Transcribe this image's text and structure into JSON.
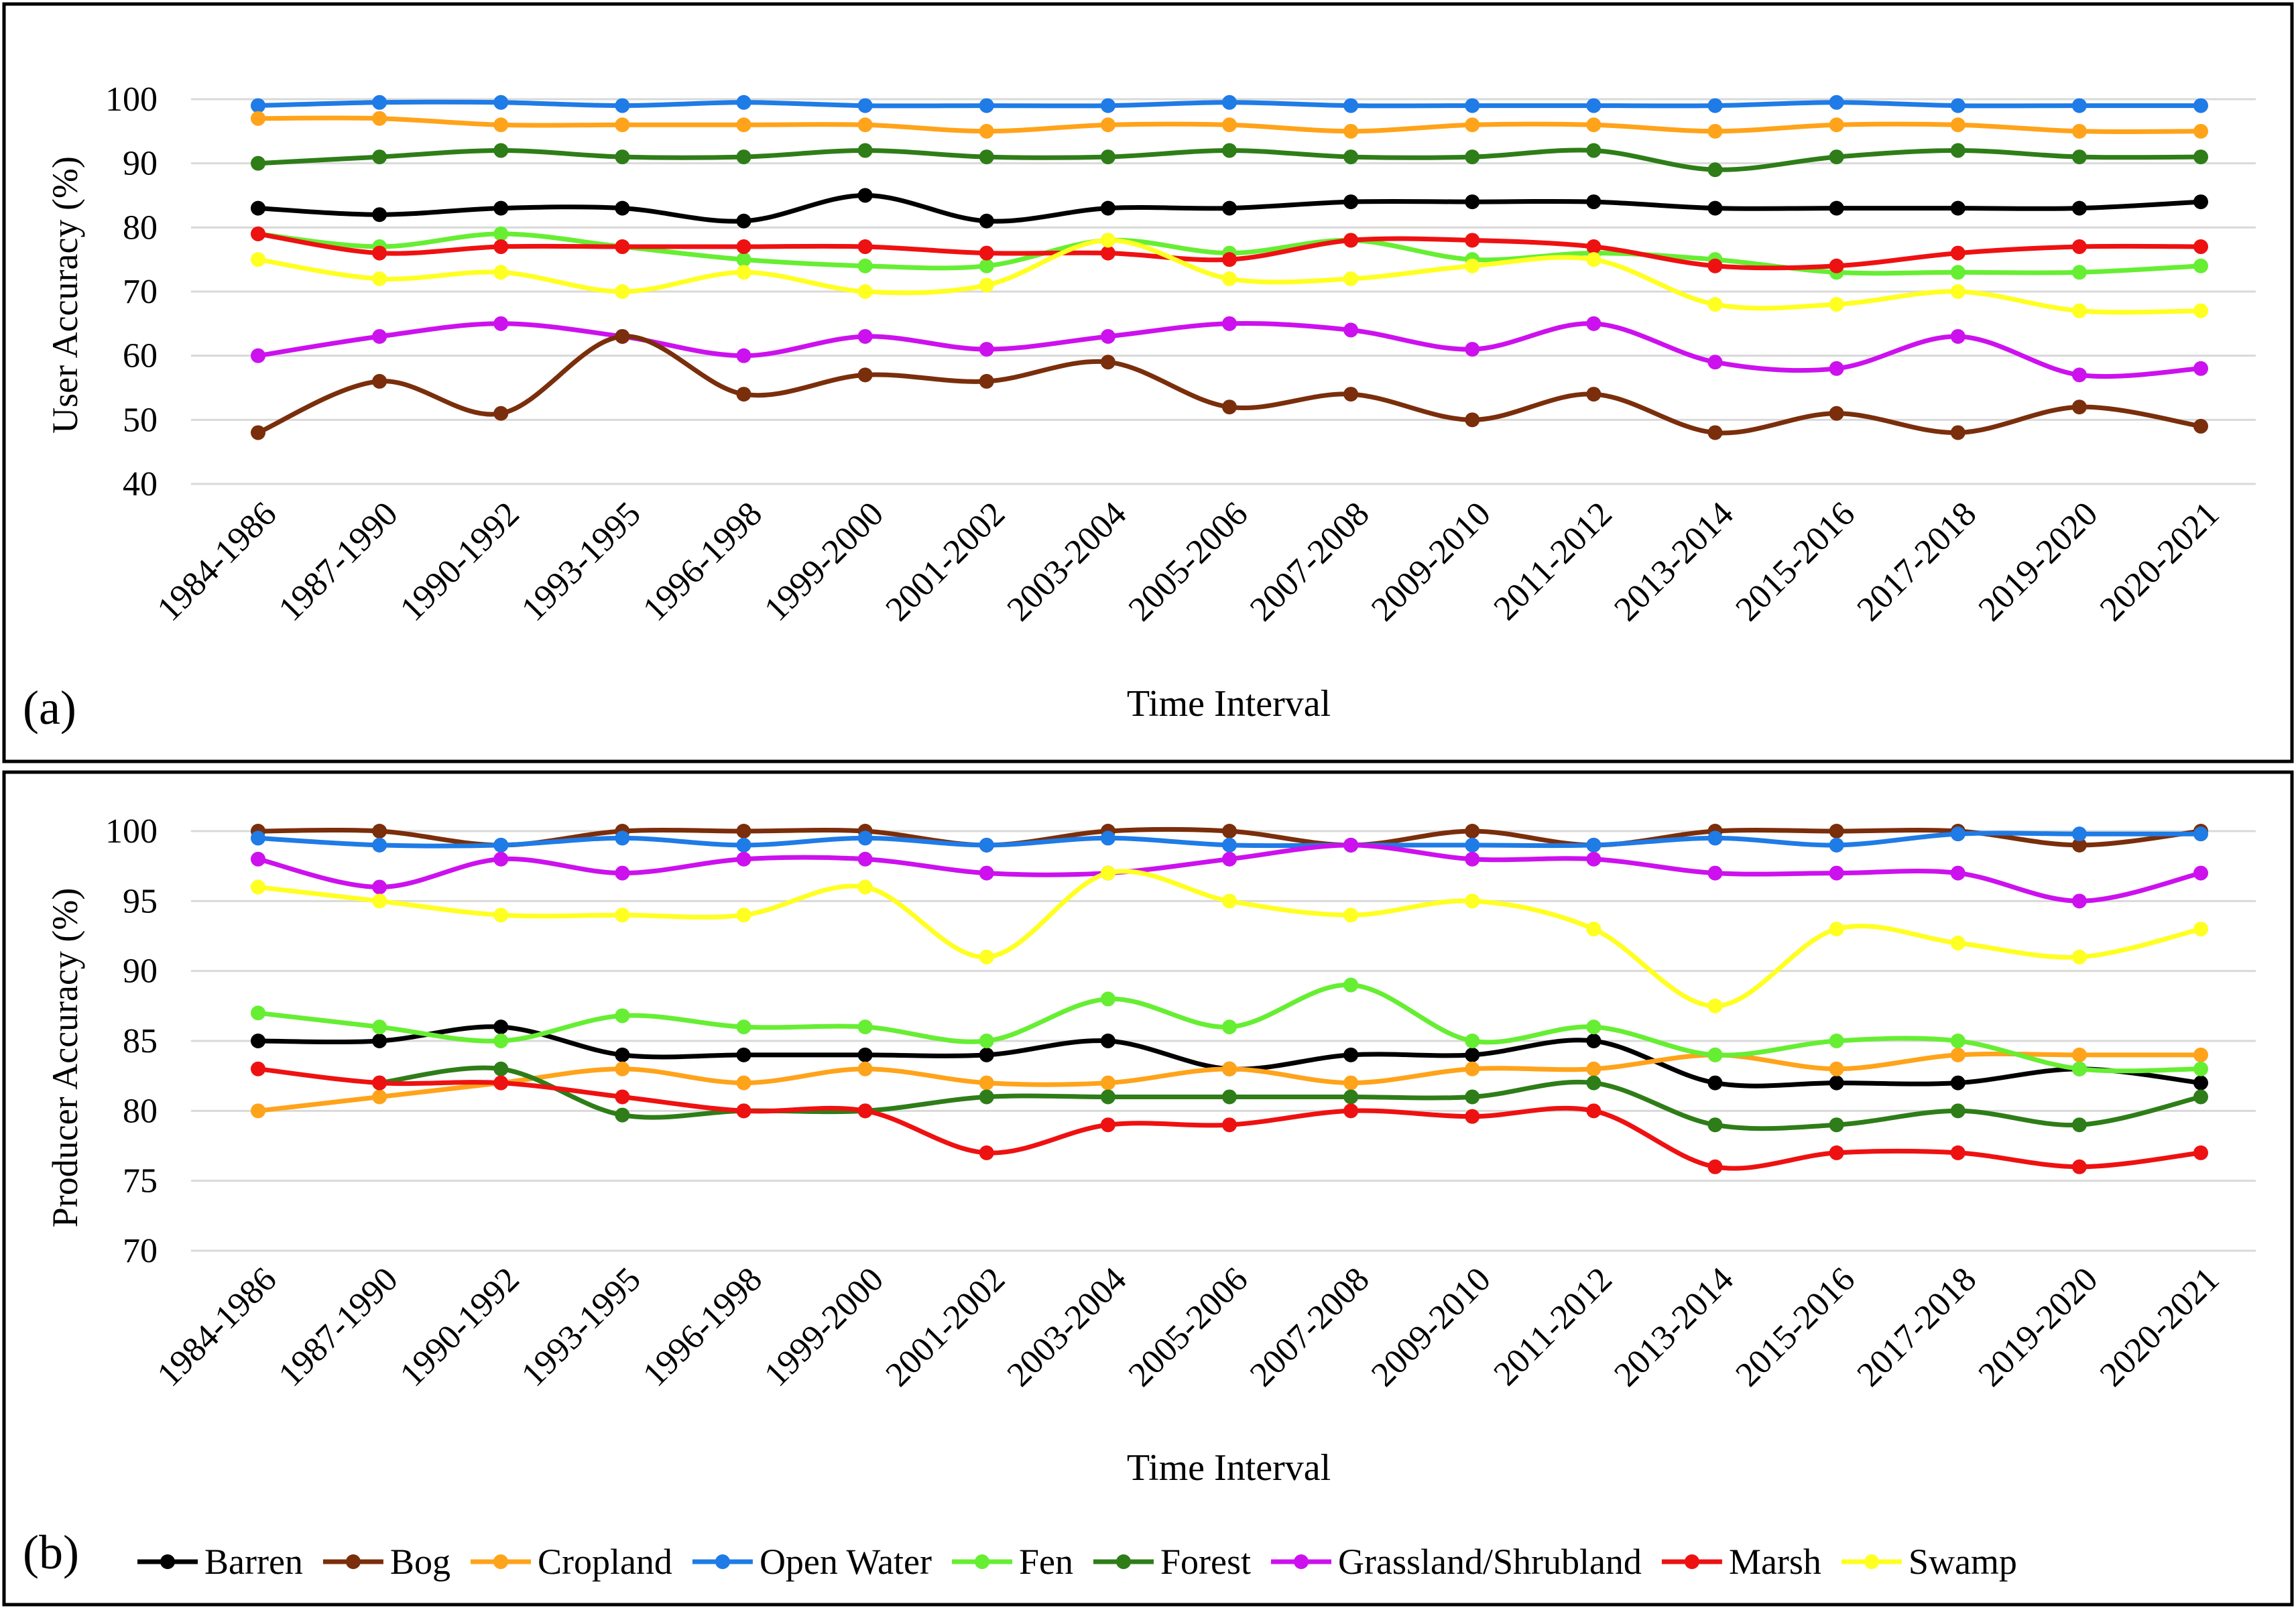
{
  "chart_data": [
    {
      "type": "line",
      "panel_label": "(a)",
      "xlabel": "Time Interval",
      "ylabel": "User Accuracy (%)",
      "ylim": [
        40,
        100
      ],
      "yticks": [
        40,
        50,
        60,
        70,
        80,
        90,
        100
      ],
      "grid": true,
      "categories": [
        "1984-1986",
        "1987-1990",
        "1990-1992",
        "1993-1995",
        "1996-1998",
        "1999-2000",
        "2001-2002",
        "2003-2004",
        "2005-2006",
        "2007-2008",
        "2009-2010",
        "2011-2012",
        "2013-2014",
        "2015-2016",
        "2017-2018",
        "2019-2020",
        "2020-2021"
      ],
      "series": [
        {
          "name": "Open Water",
          "color": "#1f7be6",
          "values": [
            99,
            99.5,
            99.5,
            99,
            99.5,
            99,
            99,
            99,
            99.5,
            99,
            99,
            99,
            99,
            99.5,
            99,
            99,
            99
          ]
        },
        {
          "name": "Cropland",
          "color": "#ffa31a",
          "values": [
            97,
            97,
            96,
            96,
            96,
            96,
            95,
            96,
            96,
            95,
            96,
            96,
            95,
            96,
            96,
            95,
            95
          ]
        },
        {
          "name": "Forest",
          "color": "#2e7d18",
          "values": [
            90,
            91,
            92,
            91,
            91,
            92,
            91,
            91,
            92,
            91,
            91,
            92,
            89,
            91,
            92,
            91,
            91
          ]
        },
        {
          "name": "Barren",
          "color": "#000000",
          "values": [
            83,
            82,
            83,
            83,
            81,
            85,
            81,
            83,
            83,
            84,
            84,
            84,
            83,
            83,
            83,
            83,
            84
          ]
        },
        {
          "name": "Fen",
          "color": "#66ee33",
          "values": [
            79,
            77,
            79,
            77,
            75,
            74,
            74,
            78,
            76,
            78,
            75,
            76,
            75,
            73,
            73,
            73,
            74
          ]
        },
        {
          "name": "Marsh",
          "color": "#ee1111",
          "values": [
            79,
            76,
            77,
            77,
            77,
            77,
            76,
            76,
            75,
            78,
            78,
            77,
            74,
            74,
            76,
            77,
            77
          ]
        },
        {
          "name": "Swamp",
          "color": "#ffff22",
          "values": [
            75,
            72,
            73,
            70,
            73,
            70,
            71,
            78,
            72,
            72,
            74,
            75,
            68,
            68,
            70,
            67,
            67
          ]
        },
        {
          "name": "Grassland/Shrubland",
          "color": "#cc11ee",
          "values": [
            60,
            63,
            65,
            63,
            60,
            63,
            61,
            63,
            65,
            64,
            61,
            65,
            59,
            58,
            63,
            57,
            58
          ]
        },
        {
          "name": "Bog",
          "color": "#7a2e0b",
          "values": [
            48,
            56,
            51,
            63,
            54,
            57,
            56,
            59,
            52,
            54,
            50,
            54,
            48,
            51,
            48,
            52,
            49
          ]
        }
      ]
    },
    {
      "type": "line",
      "panel_label": "(b)",
      "xlabel": "Time Interval",
      "ylabel": "Producer Accuracy (%)",
      "ylim": [
        70,
        100
      ],
      "yticks": [
        70,
        75,
        80,
        85,
        90,
        95,
        100
      ],
      "grid": true,
      "legend_position": "bottom",
      "categories": [
        "1984-1986",
        "1987-1990",
        "1990-1992",
        "1993-1995",
        "1996-1998",
        "1999-2000",
        "2001-2002",
        "2003-2004",
        "2005-2006",
        "2007-2008",
        "2009-2010",
        "2011-2012",
        "2013-2014",
        "2015-2016",
        "2017-2018",
        "2019-2020",
        "2020-2021"
      ],
      "series": [
        {
          "name": "Barren",
          "color": "#000000",
          "values": [
            85,
            85,
            86,
            84,
            84,
            84,
            84,
            85,
            83,
            84,
            84,
            85,
            82,
            82,
            82,
            83,
            82
          ]
        },
        {
          "name": "Bog",
          "color": "#7a2e0b",
          "values": [
            100,
            100,
            99,
            100,
            100,
            100,
            99,
            100,
            100,
            99,
            100,
            99,
            100,
            100,
            100,
            99,
            100
          ]
        },
        {
          "name": "Cropland",
          "color": "#ffa31a",
          "values": [
            80,
            81,
            82,
            83,
            82,
            83,
            82,
            82,
            83,
            82,
            83,
            83,
            84,
            83,
            84,
            84,
            84
          ]
        },
        {
          "name": "Open Water",
          "color": "#1f7be6",
          "values": [
            99.5,
            99,
            99,
            99.5,
            99,
            99.5,
            99,
            99.5,
            99,
            99,
            99,
            99,
            99.5,
            99,
            99.8,
            99.8,
            99.8
          ]
        },
        {
          "name": "Fen",
          "color": "#66ee33",
          "values": [
            87,
            86,
            85,
            86.8,
            86,
            86,
            85,
            88,
            86,
            89,
            85,
            86,
            84,
            85,
            85,
            83,
            83
          ]
        },
        {
          "name": "Forest",
          "color": "#2e7d18",
          "values": [
            null,
            82,
            83,
            79.7,
            80,
            80,
            81,
            81,
            81,
            81,
            81,
            82,
            79,
            79,
            80,
            79,
            81
          ]
        },
        {
          "name": "Grassland/Shrubland",
          "color": "#cc11ee",
          "values": [
            98,
            96,
            98,
            97,
            98,
            98,
            97,
            97,
            98,
            99,
            98,
            98,
            97,
            97,
            97,
            95,
            97
          ]
        },
        {
          "name": "Marsh",
          "color": "#ee1111",
          "values": [
            83,
            82,
            82,
            81,
            80,
            80,
            77,
            79,
            79,
            80,
            79.6,
            80,
            76,
            77,
            77,
            76,
            77
          ]
        },
        {
          "name": "Swamp",
          "color": "#ffff22",
          "values": [
            96,
            95,
            94,
            94,
            94,
            96,
            91,
            97,
            95,
            94,
            95,
            93,
            87.5,
            93,
            92,
            91,
            93
          ]
        }
      ]
    }
  ],
  "legend": [
    {
      "name": "Barren",
      "color": "#000000"
    },
    {
      "name": "Bog",
      "color": "#7a2e0b"
    },
    {
      "name": "Cropland",
      "color": "#ffa31a"
    },
    {
      "name": "Open Water",
      "color": "#1f7be6"
    },
    {
      "name": "Fen",
      "color": "#66ee33"
    },
    {
      "name": "Forest",
      "color": "#2e7d18"
    },
    {
      "name": "Grassland/Shrubland",
      "color": "#cc11ee"
    },
    {
      "name": "Marsh",
      "color": "#ee1111"
    },
    {
      "name": "Swamp",
      "color": "#ffff22"
    }
  ]
}
